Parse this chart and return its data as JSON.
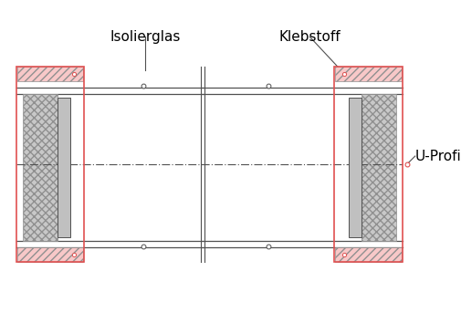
{
  "bg_color": "#ffffff",
  "red_color": "#e05050",
  "dark_color": "#505050",
  "gray_color": "#909090",
  "label_isolierglas": "Isolierglas",
  "label_klebstoff": "Klebstoff",
  "label_uprofi": "U-Profi",
  "font_size": 11,
  "figw": 5.06,
  "figh": 3.43,
  "dpi": 100
}
